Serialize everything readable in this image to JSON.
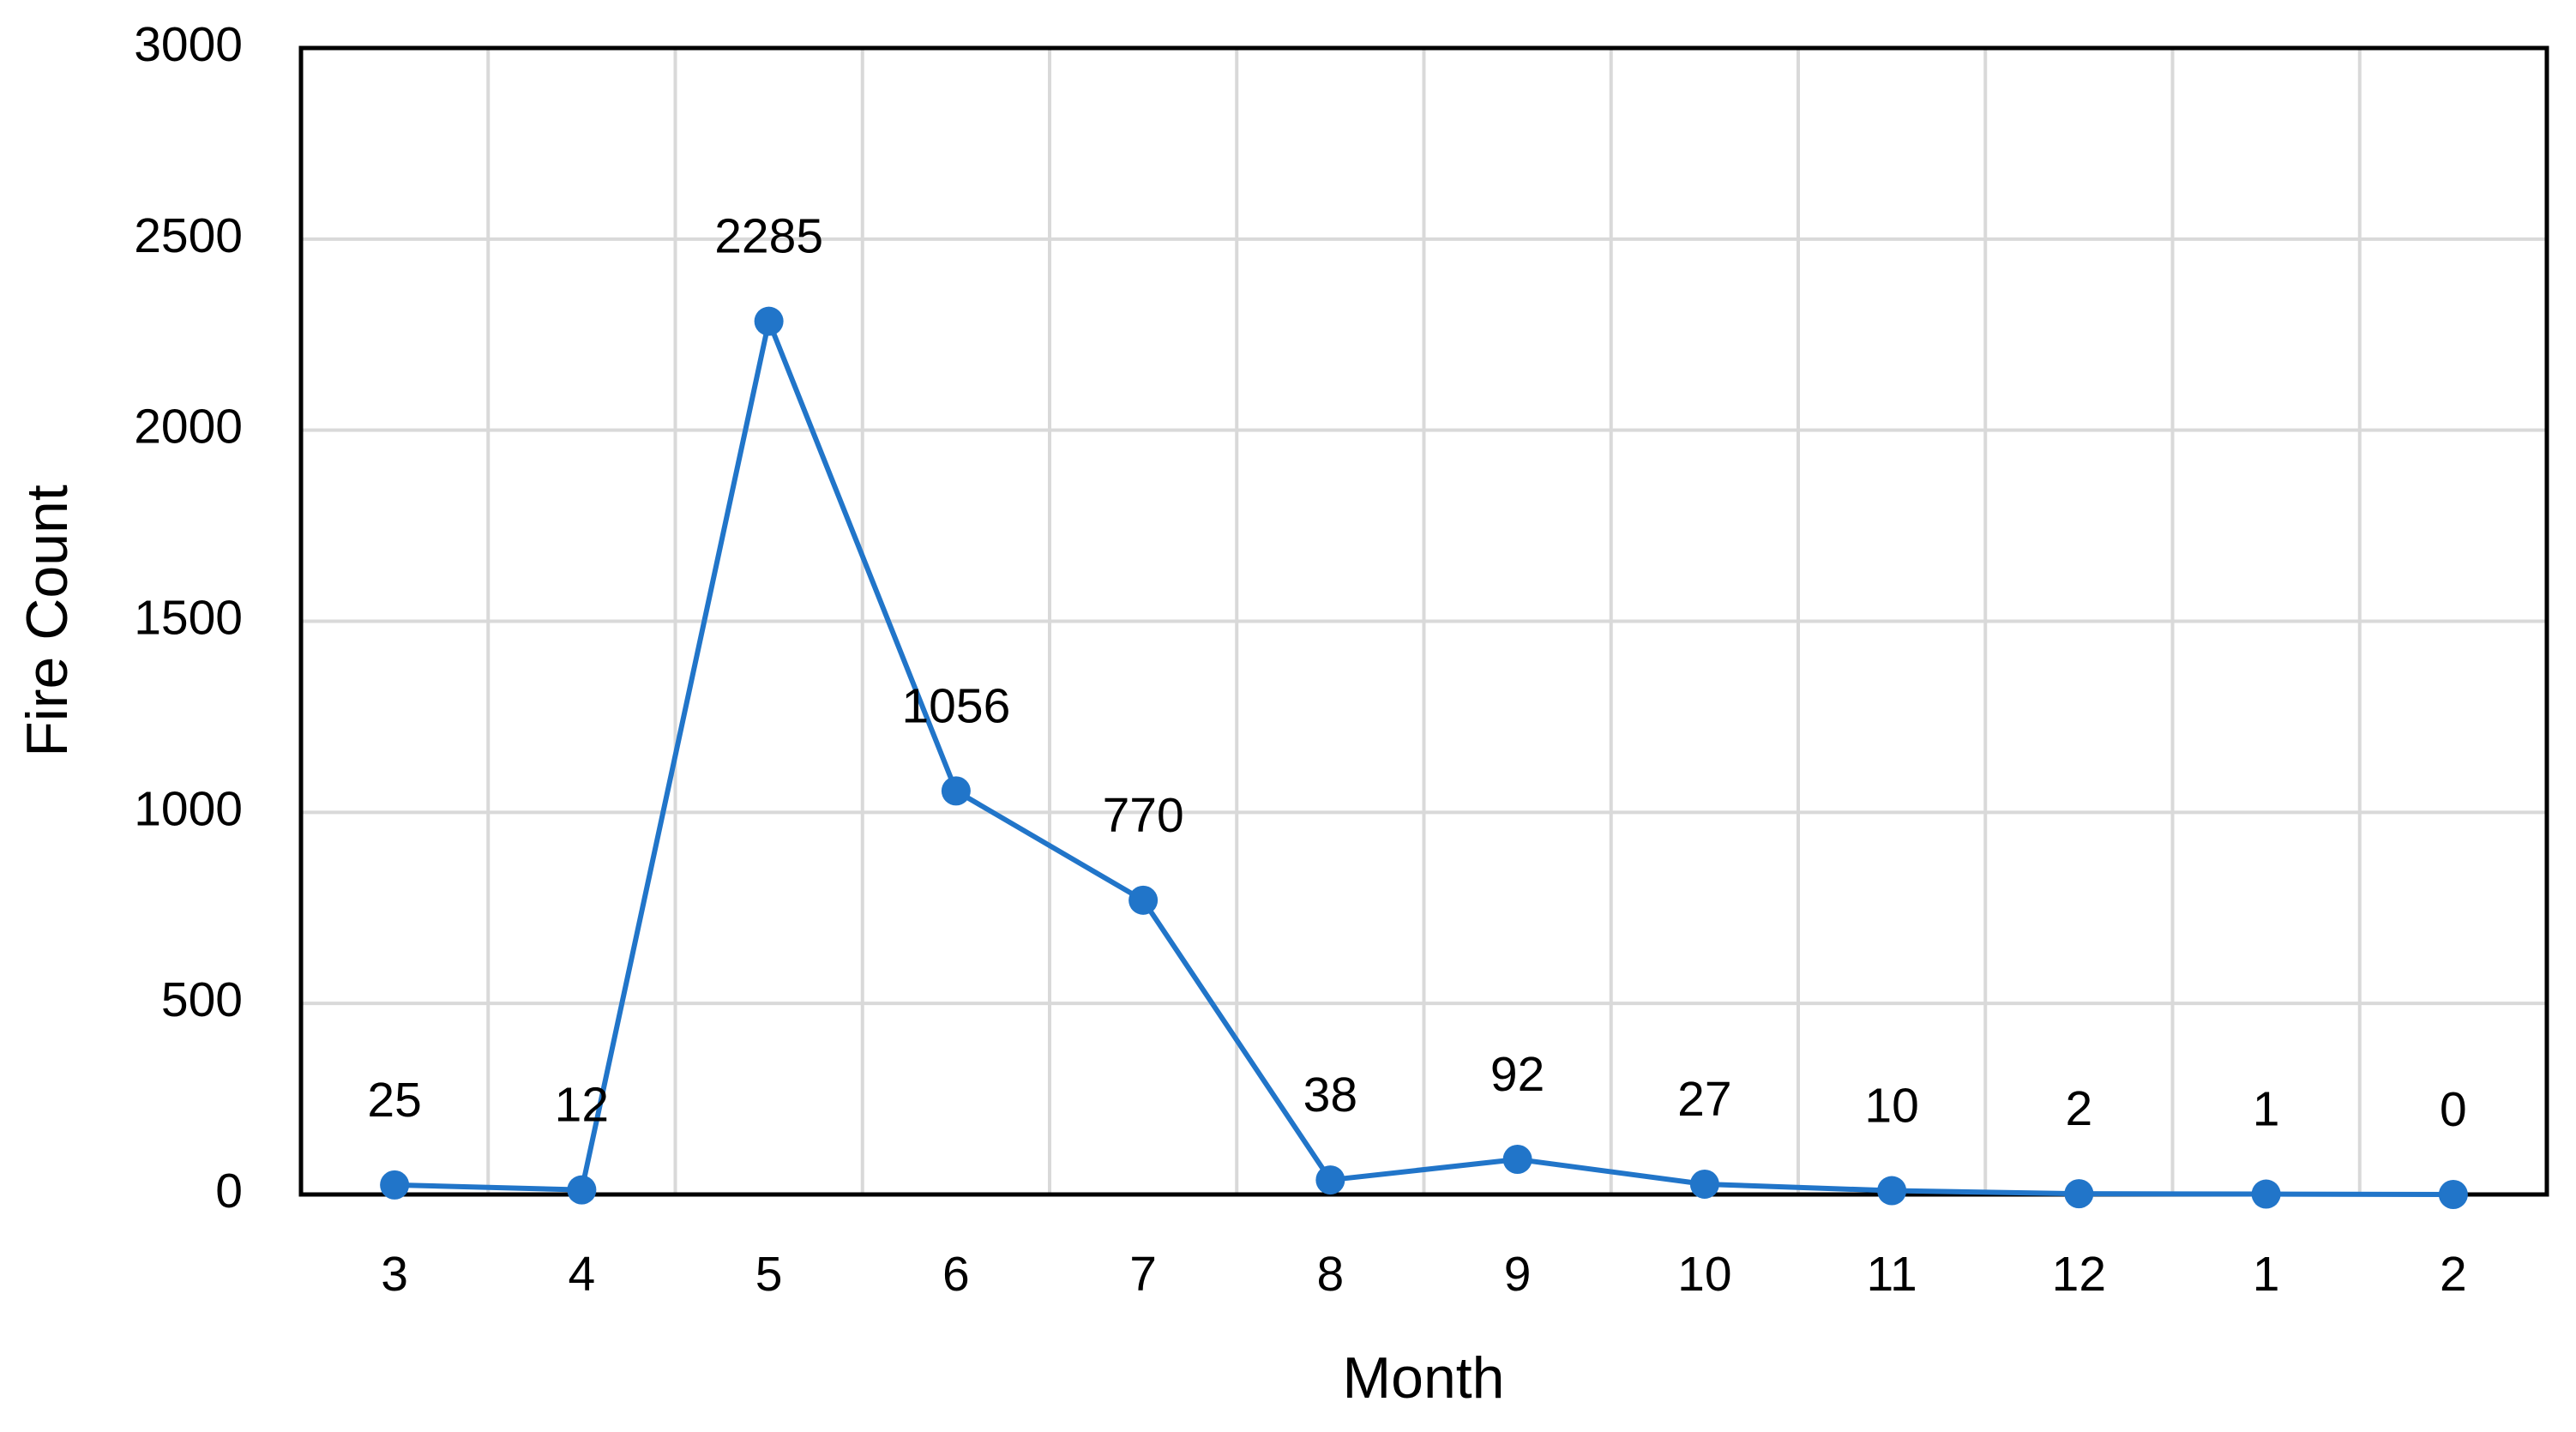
{
  "chart_data": {
    "type": "line",
    "x_label": "Month",
    "y_label": "Fire Count",
    "categories": [
      "3",
      "4",
      "5",
      "6",
      "7",
      "8",
      "9",
      "10",
      "11",
      "12",
      "1",
      "2"
    ],
    "series": [
      {
        "name": "Fire Count",
        "color": "#2175c9",
        "values": [
          25,
          12,
          2285,
          1056,
          770,
          38,
          92,
          27,
          10,
          2,
          1,
          0
        ]
      }
    ],
    "ylim": [
      0,
      3000
    ],
    "yticks": [
      0,
      500,
      1000,
      1500,
      2000,
      2500,
      3000
    ],
    "grid": true,
    "data_labels": true
  }
}
